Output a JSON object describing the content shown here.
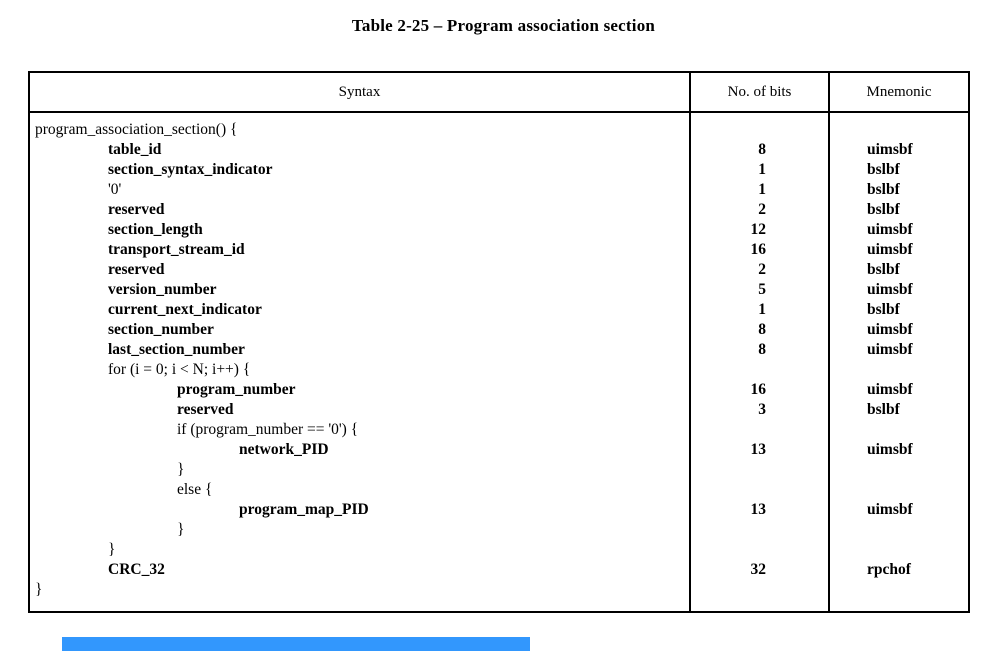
{
  "title": "Table 2-25 – Program association section",
  "table": {
    "headers": [
      "Syntax",
      "No. of bits",
      "Mnemonic"
    ],
    "rows": [
      {
        "syntax": "program_association_section() {",
        "indent": 0,
        "bold": false,
        "bits": "",
        "mnemonic": ""
      },
      {
        "syntax": "table_id",
        "indent": 1,
        "bold": true,
        "bits": "8",
        "mnemonic": "uimsbf"
      },
      {
        "syntax": "section_syntax_indicator",
        "indent": 1,
        "bold": true,
        "bits": "1",
        "mnemonic": "bslbf"
      },
      {
        "syntax": "'0'",
        "indent": 1,
        "bold": false,
        "bits": "1",
        "mnemonic": "bslbf"
      },
      {
        "syntax": "reserved",
        "indent": 1,
        "bold": true,
        "bits": "2",
        "mnemonic": "bslbf"
      },
      {
        "syntax": "section_length",
        "indent": 1,
        "bold": true,
        "bits": "12",
        "mnemonic": "uimsbf"
      },
      {
        "syntax": "transport_stream_id",
        "indent": 1,
        "bold": true,
        "bits": "16",
        "mnemonic": "uimsbf"
      },
      {
        "syntax": "reserved",
        "indent": 1,
        "bold": true,
        "bits": "2",
        "mnemonic": "bslbf"
      },
      {
        "syntax": "version_number",
        "indent": 1,
        "bold": true,
        "bits": "5",
        "mnemonic": "uimsbf"
      },
      {
        "syntax": "current_next_indicator",
        "indent": 1,
        "bold": true,
        "bits": "1",
        "mnemonic": "bslbf"
      },
      {
        "syntax": "section_number",
        "indent": 1,
        "bold": true,
        "bits": "8",
        "mnemonic": "uimsbf"
      },
      {
        "syntax": "last_section_number",
        "indent": 1,
        "bold": true,
        "bits": "8",
        "mnemonic": "uimsbf"
      },
      {
        "syntax": "for (i = 0; i < N; i++) {",
        "indent": 1,
        "bold": false,
        "bits": "",
        "mnemonic": ""
      },
      {
        "syntax": "program_number",
        "indent": 2,
        "bold": true,
        "bits": "16",
        "mnemonic": "uimsbf"
      },
      {
        "syntax": "reserved",
        "indent": 2,
        "bold": true,
        "bits": "3",
        "mnemonic": "bslbf"
      },
      {
        "syntax": "if (program_number == '0') {",
        "indent": 2,
        "bold": false,
        "bits": "",
        "mnemonic": ""
      },
      {
        "syntax": "network_PID",
        "indent": 3,
        "bold": true,
        "bits": "13",
        "mnemonic": "uimsbf"
      },
      {
        "syntax": "}",
        "indent": 2,
        "bold": false,
        "bits": "",
        "mnemonic": ""
      },
      {
        "syntax": "else {",
        "indent": 2,
        "bold": false,
        "bits": "",
        "mnemonic": ""
      },
      {
        "syntax": "program_map_PID",
        "indent": 3,
        "bold": true,
        "bits": "13",
        "mnemonic": "uimsbf"
      },
      {
        "syntax": "}",
        "indent": 2,
        "bold": false,
        "bits": "",
        "mnemonic": ""
      },
      {
        "syntax": "}",
        "indent": 1,
        "bold": false,
        "bits": "",
        "mnemonic": ""
      },
      {
        "syntax": "CRC_32",
        "indent": 1,
        "bold": true,
        "bits": "32",
        "mnemonic": "rpchof"
      },
      {
        "syntax": "}",
        "indent": 0,
        "bold": false,
        "bits": "",
        "mnemonic": ""
      }
    ]
  },
  "selection": {
    "color": "#3297fd"
  },
  "colors": {
    "text": "#000000",
    "border": "#000000",
    "background": "#ffffff"
  }
}
